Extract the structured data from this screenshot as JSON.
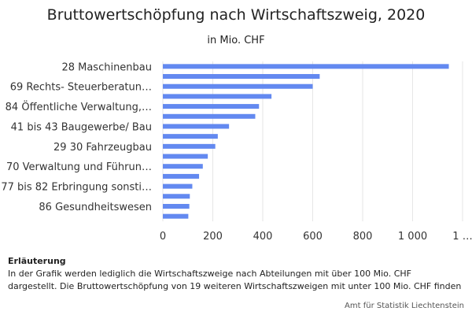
{
  "chart_data": {
    "type": "bar",
    "orientation": "horizontal",
    "title": "Bruttowertschöpfung nach Wirtschaftszweig, 2020",
    "subtitle": "in Mio. CHF",
    "categories": [
      "28 Maschinenbau",
      "",
      "69 Rechts- Steuerberatun…",
      "",
      "84 Öffentliche Verwaltung,…",
      "",
      "41 bis 43 Baugewerbe/ Bau",
      "",
      "29 30 Fahrzeugbau",
      "",
      "70 Verwaltung und Führun…",
      "",
      "77 bis 82 Erbringung sonsti…",
      "",
      "86 Gesundheitswesen",
      ""
    ],
    "values": [
      1145,
      628,
      600,
      435,
      385,
      370,
      265,
      220,
      210,
      180,
      160,
      145,
      118,
      108,
      106,
      102
    ],
    "xlim": [
      0,
      1200
    ],
    "xticks": [
      "0",
      "200",
      "400",
      "600",
      "800",
      "1 000",
      "1 …"
    ],
    "bar_color": "#6389f0",
    "grid": true
  },
  "note": {
    "heading": "Erläuterung",
    "line1": "In der Grafik werden lediglich die Wirtschaftszweige nach Abteilungen mit über 100 Mio. CHF",
    "line2": "dargestellt. Die Bruttowertschöpfung von 19 weiteren Wirtschaftszweigen mit unter 100 Mio. CHF finden"
  },
  "source": "Amt für Statistik Liechtenstein"
}
